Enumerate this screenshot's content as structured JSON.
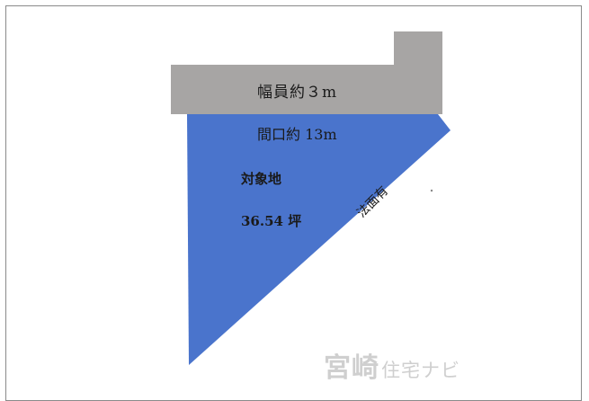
{
  "diagram": {
    "road": {
      "label": "幅員約３m",
      "color": "#a7a5a4"
    },
    "site": {
      "frontage_label": "間口約 13m",
      "name": "対象地",
      "area": "36.54 坪",
      "slope_label": "法面有",
      "color": "#4a74cc"
    },
    "watermark": {
      "main": "宮崎",
      "sub": "住宅ナビ"
    }
  }
}
